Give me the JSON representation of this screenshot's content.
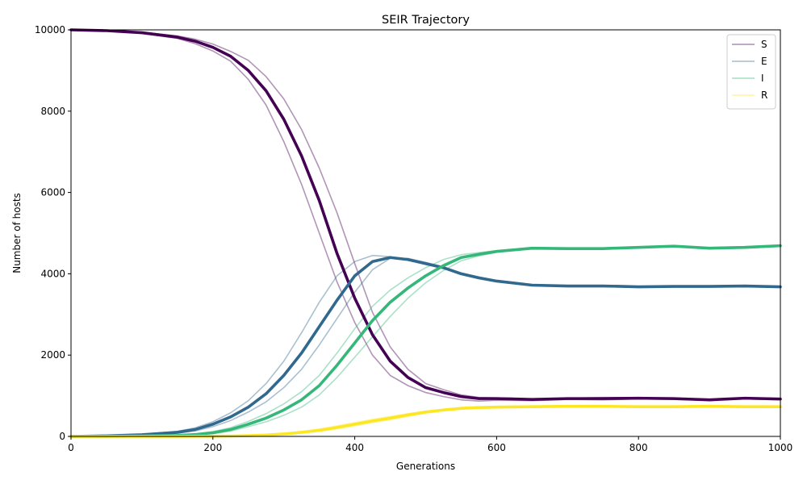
{
  "chart_data": {
    "type": "line",
    "title": "SEIR Trajectory",
    "xlabel": "Generations",
    "ylabel": "Number of hosts",
    "xlim": [
      0,
      1000
    ],
    "ylim": [
      0,
      10000
    ],
    "xticks": [
      0,
      200,
      400,
      600,
      800,
      1000
    ],
    "yticks": [
      0,
      2000,
      4000,
      6000,
      8000,
      10000
    ],
    "grid": false,
    "legend_position": "top-right",
    "x": [
      0,
      50,
      100,
      150,
      175,
      200,
      225,
      250,
      275,
      300,
      325,
      350,
      375,
      400,
      425,
      450,
      475,
      500,
      525,
      550,
      575,
      600,
      650,
      700,
      750,
      800,
      850,
      900,
      950,
      1000
    ],
    "series": [
      {
        "name": "S",
        "color": "#440154",
        "values": [
          10000,
          9980,
          9930,
          9820,
          9720,
          9570,
          9350,
          9000,
          8500,
          7800,
          6900,
          5800,
          4500,
          3400,
          2500,
          1850,
          1450,
          1200,
          1080,
          980,
          930,
          930,
          910,
          930,
          930,
          940,
          930,
          900,
          940,
          920
        ],
        "replicates": [
          [
            10000,
            9985,
            9945,
            9850,
            9770,
            9650,
            9470,
            9250,
            8850,
            8300,
            7550,
            6600,
            5500,
            4250,
            3050,
            2200,
            1650,
            1300,
            1150,
            1020,
            960,
            950,
            920,
            940,
            960,
            950,
            940,
            910,
            950,
            920
          ],
          [
            10000,
            9975,
            9915,
            9790,
            9660,
            9480,
            9230,
            8780,
            8150,
            7250,
            6200,
            5000,
            3800,
            2800,
            2000,
            1500,
            1250,
            1080,
            980,
            900,
            870,
            890,
            880,
            910,
            900,
            920,
            910,
            890,
            920,
            900
          ]
        ]
      },
      {
        "name": "E",
        "color": "#31688e",
        "values": [
          0,
          15,
          40,
          100,
          170,
          300,
          480,
          720,
          1050,
          1500,
          2050,
          2700,
          3350,
          3950,
          4300,
          4400,
          4350,
          4250,
          4150,
          4000,
          3900,
          3820,
          3720,
          3700,
          3700,
          3680,
          3690,
          3690,
          3700,
          3680
        ],
        "replicates": [
          [
            0,
            18,
            50,
            125,
            210,
            360,
            580,
            880,
            1300,
            1850,
            2550,
            3300,
            3950,
            4300,
            4450,
            4420,
            4330,
            4230,
            4130,
            3990,
            3890,
            3820,
            3720,
            3700,
            3700,
            3680,
            3690,
            3690,
            3700,
            3680
          ],
          [
            0,
            12,
            32,
            80,
            135,
            240,
            390,
            600,
            850,
            1200,
            1650,
            2250,
            2900,
            3550,
            4100,
            4380,
            4380,
            4280,
            4170,
            4020,
            3910,
            3830,
            3720,
            3700,
            3700,
            3680,
            3690,
            3690,
            3700,
            3680
          ]
        ]
      },
      {
        "name": "I",
        "color": "#35b779",
        "values": [
          0,
          2,
          8,
          25,
          45,
          90,
          170,
          300,
          450,
          650,
          900,
          1250,
          1750,
          2300,
          2850,
          3300,
          3650,
          3950,
          4200,
          4400,
          4480,
          4550,
          4630,
          4620,
          4620,
          4650,
          4680,
          4630,
          4650,
          4690
        ],
        "replicates": [
          [
            0,
            3,
            10,
            32,
            58,
            115,
            215,
            370,
            560,
            800,
            1100,
            1500,
            2050,
            2650,
            3200,
            3600,
            3900,
            4150,
            4350,
            4470,
            4520,
            4570,
            4630,
            4630,
            4630,
            4660,
            4690,
            4640,
            4670,
            4710
          ],
          [
            0,
            1,
            6,
            18,
            34,
            68,
            130,
            240,
            360,
            520,
            720,
            1020,
            1450,
            1950,
            2450,
            2950,
            3400,
            3780,
            4080,
            4320,
            4440,
            4530,
            4620,
            4620,
            4620,
            4650,
            4670,
            4620,
            4650,
            4690
          ]
        ]
      },
      {
        "name": "R",
        "color": "#fde725",
        "values": [
          0,
          0,
          0,
          1,
          3,
          6,
          10,
          18,
          35,
          60,
          100,
          150,
          220,
          300,
          380,
          450,
          530,
          600,
          650,
          690,
          710,
          720,
          730,
          740,
          740,
          730,
          730,
          740,
          730,
          730
        ],
        "replicates": [
          [
            0,
            0,
            1,
            2,
            4,
            8,
            14,
            24,
            45,
            75,
            120,
            180,
            260,
            340,
            420,
            490,
            560,
            620,
            670,
            700,
            720,
            730,
            740,
            750,
            750,
            740,
            740,
            750,
            740,
            740
          ],
          [
            0,
            0,
            0,
            0,
            2,
            4,
            7,
            12,
            25,
            45,
            80,
            125,
            185,
            260,
            340,
            410,
            490,
            570,
            630,
            670,
            700,
            710,
            720,
            730,
            730,
            720,
            720,
            730,
            720,
            720
          ]
        ]
      }
    ]
  }
}
